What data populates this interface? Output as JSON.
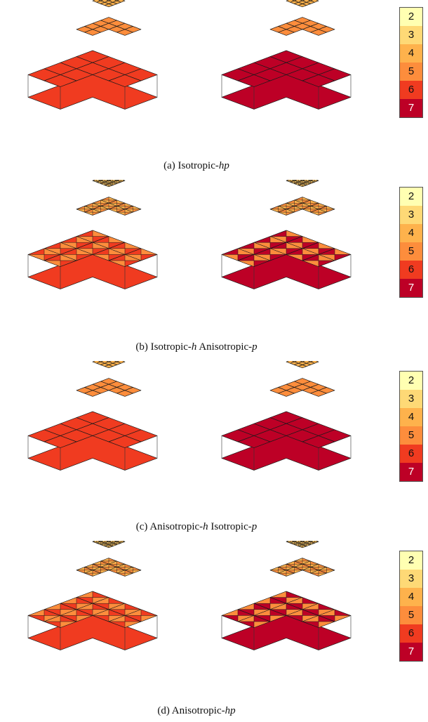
{
  "panels": [
    {
      "id": "a",
      "caption_parts": [
        "(a) Isotropic-",
        "hp",
        "",
        ""
      ],
      "pattern": "plain"
    },
    {
      "id": "b",
      "caption_parts": [
        "(b) Isotropic-",
        "h",
        " Anisotropic-",
        "p"
      ],
      "pattern": "x"
    },
    {
      "id": "c",
      "caption_parts": [
        "(c) Anisotropic-",
        "h",
        " Isotropic-",
        "p"
      ],
      "pattern": "plain"
    },
    {
      "id": "d",
      "caption_parts": [
        "(d) Anisotropic-",
        "hp",
        "",
        ""
      ],
      "pattern": "wedge"
    }
  ],
  "legend": {
    "levels": [
      "2",
      "3",
      "4",
      "5",
      "6",
      "7"
    ],
    "colors": [
      "#ffffb2",
      "#fed976",
      "#feb24c",
      "#fd8d3c",
      "#f03b20",
      "#bd0026"
    ]
  },
  "mesh_colors": {
    "left_base": "#f03b20",
    "right_base": "#bd0026",
    "level3": "#fd8d3c",
    "level2": "#feb24c",
    "top": "#fed976"
  }
}
